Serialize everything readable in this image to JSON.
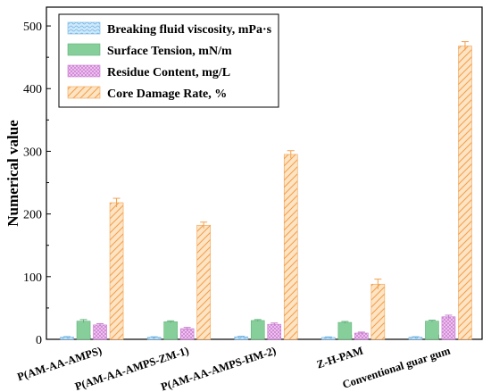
{
  "chart_data": {
    "type": "bar",
    "title": "",
    "xlabel": "",
    "ylabel": "Numerical value",
    "ylim": [
      0,
      530
    ],
    "yticks": [
      0,
      100,
      200,
      300,
      400,
      500
    ],
    "grid": false,
    "legend_position": "top-left",
    "categories": [
      "P(AM-AA-AMPS)",
      "P(AM-AA-AMPS-ZM-1)",
      "P(AM-AA-AMPS-HM-2)",
      "Z-H-PAM",
      "Conventional guar gum"
    ],
    "series": [
      {
        "name": "Breaking fluid viscosity, mPa·s",
        "values": [
          3.5,
          3.2,
          4.0,
          3.0,
          3.3
        ],
        "errors": [
          0.8,
          0.8,
          0.8,
          0.8,
          0.8
        ],
        "color": "#a9d5f2",
        "pattern": "wave"
      },
      {
        "name": "Surface Tension, mN/m",
        "values": [
          29,
          28,
          30,
          27,
          29
        ],
        "errors": [
          2.5,
          1.5,
          1.5,
          1.5,
          1.5
        ],
        "color": "#86cf9a",
        "pattern": "solid"
      },
      {
        "name": "Residue Content, mg/L",
        "values": [
          23,
          17,
          24,
          10,
          36
        ],
        "errors": [
          2,
          2,
          2,
          1.5,
          2.5
        ],
        "color": "#e6a3e6",
        "pattern": "crosshatch"
      },
      {
        "name": "Core Damage Rate, %",
        "values": [
          218,
          182,
          295,
          88,
          468
        ],
        "errors": [
          7,
          5,
          6,
          8,
          7
        ],
        "color": "#f6b26b",
        "pattern": "diagonal"
      }
    ]
  }
}
